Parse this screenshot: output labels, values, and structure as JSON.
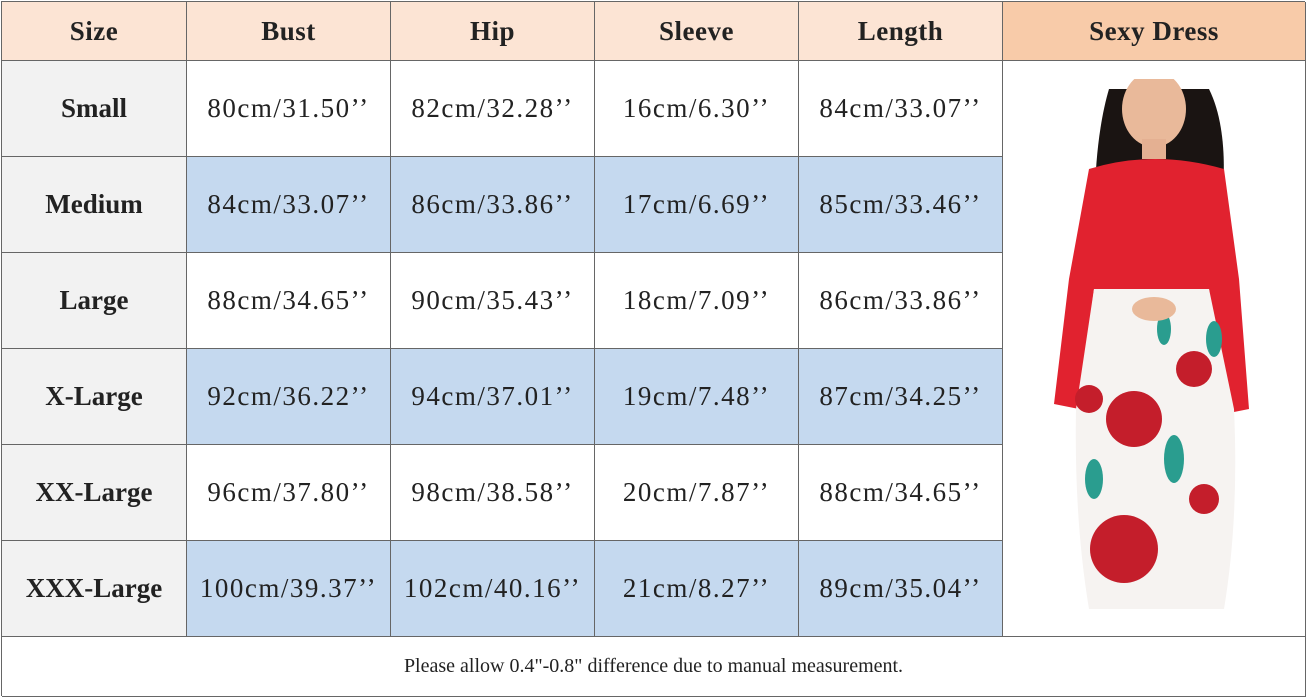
{
  "table": {
    "header": [
      "Size",
      "Bust",
      "Hip",
      "Sleeve",
      "Length",
      "Sexy Dress"
    ],
    "rows": [
      [
        "Small",
        "80cm/31.50’’",
        "82cm/32.28’’",
        "16cm/6.30’’",
        "84cm/33.07’’"
      ],
      [
        "Medium",
        "84cm/33.07’’",
        "86cm/33.86’’",
        "17cm/6.69’’",
        "85cm/33.46’’"
      ],
      [
        "Large",
        "88cm/34.65’’",
        "90cm/35.43’’",
        "18cm/7.09’’",
        "86cm/33.86’’"
      ],
      [
        "X-Large",
        "92cm/36.22’’",
        "94cm/37.01’’",
        "19cm/7.48’’",
        "87cm/34.25’’"
      ],
      [
        "XX-Large",
        "96cm/37.80’’",
        "98cm/38.58’’",
        "20cm/7.87’’",
        "88cm/34.65’’"
      ],
      [
        "XXX-Large",
        "100cm/39.37’’",
        "102cm/40.16’’",
        "21cm/8.27’’",
        "89cm/35.04’’"
      ]
    ]
  },
  "footer": "Please allow 0.4\"-0.8\" difference due to manual measurement."
}
